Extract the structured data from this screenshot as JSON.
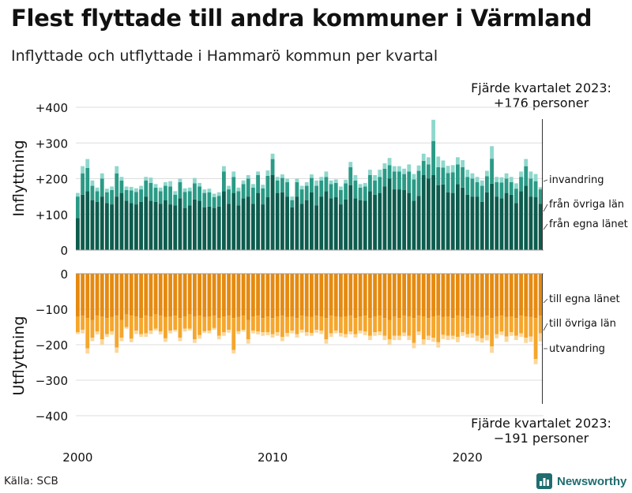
{
  "title": "Flest flyttade till andra kommuner i Värmland",
  "subtitle": "Inflyttade och utflyttade i Hammarö kommun per kvartal",
  "annotation_top": {
    "line1": "Fjärde kvartalet 2023:",
    "line2": "+176 personer"
  },
  "annotation_bottom": {
    "line1": "Fjärde kvartalet 2023:",
    "line2": "−191 personer"
  },
  "source": "Källa: SCB",
  "brand": "Newsworthy",
  "colors": {
    "in_same": "#0d5c4e",
    "in_other": "#2a9a86",
    "in_imm": "#8ed7cc",
    "out_same": "#e58a10",
    "out_other": "#f5a62c",
    "out_emi": "#fbd79c",
    "grid": "#dddddd",
    "marker": "#333333"
  },
  "chart_data": {
    "type": "bar",
    "stacked": true,
    "x_start": "2000Q1",
    "x_end": "2023Q4",
    "x_ticks": [
      {
        "label": "2000",
        "index": 0
      },
      {
        "label": "2010",
        "index": 40
      },
      {
        "label": "2020",
        "index": 80
      }
    ],
    "panels": [
      {
        "id": "in",
        "ylabel": "Inflyttning",
        "ylim": [
          0,
          400
        ],
        "yticks": [
          {
            "v": 0,
            "label": "0"
          },
          {
            "v": 100,
            "label": "+100"
          },
          {
            "v": 200,
            "label": "+200"
          },
          {
            "v": 300,
            "label": "+300"
          },
          {
            "v": 400,
            "label": "+400"
          }
        ],
        "series": [
          {
            "name": "från egna länet",
            "color_key": "in_same",
            "values": [
              90,
              155,
              165,
              140,
              135,
              150,
              132,
              128,
              150,
              160,
              138,
              132,
              128,
              135,
              150,
              138,
              135,
              130,
              140,
              128,
              125,
              145,
              118,
              125,
              142,
              138,
              120,
              122,
              118,
              122,
              165,
              130,
              160,
              125,
              145,
              150,
              130,
              160,
              128,
              148,
              210,
              160,
              162,
              150,
              120,
              150,
              130,
              140,
              162,
              125,
              150,
              165,
              145,
              148,
              128,
              142,
              182,
              145,
              140,
              138,
              165,
              155,
              160,
              178,
              200,
              170,
              170,
              168,
              160,
              138,
              152,
              210,
              200,
              210,
              182,
              184,
              162,
              160,
              185,
              175,
              155,
              150,
              150,
              135,
              162,
              186,
              150,
              145,
              160,
              155,
              132,
              165,
              180,
              150,
              148,
              130
            ]
          },
          {
            "name": "från övriga län",
            "color_key": "in_other",
            "values": [
              60,
              60,
              65,
              40,
              30,
              50,
              30,
              40,
              65,
              35,
              30,
              35,
              35,
              35,
              45,
              50,
              40,
              35,
              40,
              50,
              30,
              45,
              45,
              40,
              45,
              40,
              40,
              40,
              30,
              30,
              55,
              40,
              45,
              40,
              40,
              50,
              45,
              50,
              45,
              60,
              45,
              35,
              40,
              40,
              20,
              40,
              40,
              40,
              40,
              55,
              45,
              40,
              40,
              40,
              40,
              45,
              50,
              50,
              35,
              40,
              45,
              40,
              45,
              50,
              38,
              50,
              50,
              45,
              60,
              60,
              70,
              40,
              40,
              95,
              50,
              47,
              54,
              58,
              55,
              57,
              50,
              50,
              40,
              45,
              45,
              70,
              40,
              44,
              40,
              35,
              40,
              40,
              55,
              50,
              45,
              40
            ]
          },
          {
            "name": "invandring",
            "color_key": "in_imm",
            "values": [
              10,
              20,
              25,
              15,
              10,
              15,
              10,
              10,
              20,
              10,
              10,
              10,
              10,
              10,
              10,
              15,
              10,
              10,
              10,
              15,
              10,
              10,
              10,
              10,
              15,
              10,
              10,
              10,
              10,
              10,
              15,
              10,
              15,
              10,
              10,
              10,
              10,
              10,
              10,
              15,
              15,
              10,
              10,
              10,
              10,
              10,
              10,
              10,
              10,
              15,
              10,
              15,
              10,
              10,
              10,
              10,
              15,
              15,
              10,
              10,
              15,
              15,
              20,
              15,
              20,
              15,
              15,
              15,
              20,
              15,
              15,
              20,
              20,
              60,
              30,
              20,
              20,
              20,
              20,
              20,
              20,
              15,
              15,
              15,
              15,
              35,
              15,
              15,
              15,
              15,
              15,
              15,
              20,
              20,
              20,
              6
            ]
          }
        ],
        "legend": [
          "invandring",
          "från övriga län",
          "från egna länet"
        ]
      },
      {
        "id": "out",
        "ylabel": "Utflyttning",
        "ylim": [
          -400,
          0
        ],
        "yticks": [
          {
            "v": 0,
            "label": "0"
          },
          {
            "v": -100,
            "label": "−100"
          },
          {
            "v": -200,
            "label": "−200"
          },
          {
            "v": -300,
            "label": "−300"
          },
          {
            "v": -400,
            "label": "−400"
          }
        ],
        "series": [
          {
            "name": "till egna länet",
            "color_key": "out_same",
            "values": [
              -120,
              -118,
              -125,
              -130,
              -118,
              -120,
              -125,
              -122,
              -118,
              -130,
              -115,
              -118,
              -120,
              -125,
              -118,
              -120,
              -115,
              -118,
              -122,
              -120,
              -118,
              -125,
              -120,
              -115,
              -120,
              -118,
              -122,
              -120,
              -118,
              -125,
              -120,
              -118,
              -125,
              -122,
              -118,
              -130,
              -120,
              -118,
              -125,
              -120,
              -125,
              -120,
              -118,
              -122,
              -120,
              -125,
              -118,
              -120,
              -122,
              -118,
              -120,
              -125,
              -118,
              -120,
              -122,
              -120,
              -118,
              -125,
              -120,
              -118,
              -125,
              -120,
              -118,
              -125,
              -130,
              -120,
              -125,
              -118,
              -120,
              -125,
              -118,
              -120,
              -125,
              -120,
              -118,
              -122,
              -120,
              -125,
              -118,
              -120,
              -125,
              -118,
              -120,
              -122,
              -118,
              -125,
              -120,
              -118,
              -122,
              -120,
              -125,
              -118,
              -120,
              -122,
              -125,
              -118
            ]
          },
          {
            "name": "till övriga län",
            "color_key": "out_other",
            "values": [
              -45,
              -40,
              -85,
              -50,
              -45,
              -65,
              -45,
              -40,
              -90,
              -50,
              -35,
              -65,
              -40,
              -45,
              -50,
              -40,
              -40,
              -45,
              -60,
              -40,
              -40,
              -55,
              -35,
              -40,
              -65,
              -55,
              -40,
              -40,
              -35,
              -50,
              -45,
              -40,
              -90,
              -40,
              -40,
              -55,
              -40,
              -45,
              -40,
              -45,
              -45,
              -45,
              -60,
              -45,
              -40,
              -45,
              -40,
              -45,
              -45,
              -40,
              -40,
              -60,
              -50,
              -40,
              -45,
              -50,
              -45,
              -45,
              -40,
              -45,
              -50,
              -45,
              -45,
              -50,
              -55,
              -55,
              -50,
              -48,
              -55,
              -70,
              -45,
              -65,
              -50,
              -60,
              -75,
              -50,
              -55,
              -50,
              -60,
              -45,
              -45,
              -50,
              -55,
              -60,
              -55,
              -80,
              -50,
              -45,
              -55,
              -45,
              -50,
              -50,
              -60,
              -55,
              -115,
              -50
            ]
          },
          {
            "name": "utvandring",
            "color_key": "out_emi",
            "values": [
              -5,
              -10,
              -15,
              -10,
              -8,
              -15,
              -8,
              -10,
              -15,
              -10,
              -5,
              -10,
              -10,
              -8,
              -10,
              -10,
              -5,
              -8,
              -10,
              -8,
              -5,
              -10,
              -8,
              -5,
              -10,
              -10,
              -5,
              -8,
              -5,
              -10,
              -10,
              -8,
              -10,
              -8,
              -5,
              -12,
              -8,
              -8,
              -10,
              -8,
              -10,
              -10,
              -12,
              -10,
              -8,
              -10,
              -8,
              -10,
              -8,
              -8,
              -10,
              -12,
              -10,
              -8,
              -10,
              -10,
              -8,
              -10,
              -8,
              -10,
              -12,
              -10,
              -10,
              -12,
              -15,
              -12,
              -12,
              -10,
              -12,
              -15,
              -10,
              -15,
              -12,
              -12,
              -15,
              -12,
              -12,
              -10,
              -15,
              -10,
              -10,
              -12,
              -15,
              -12,
              -15,
              -18,
              -12,
              -10,
              -15,
              -10,
              -12,
              -10,
              -15,
              -15,
              -15,
              -23
            ]
          }
        ],
        "legend": [
          "till egna länet",
          "till övriga län",
          "utvandring"
        ]
      }
    ]
  }
}
